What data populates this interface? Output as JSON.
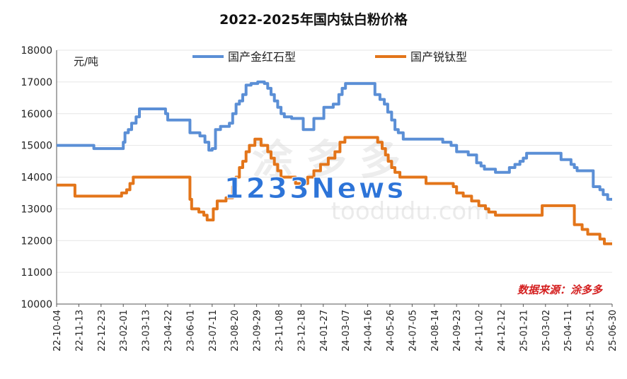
{
  "chart_data": {
    "type": "line",
    "title": "2022-2025年国内钛白粉价格",
    "unit_label": "元/吨",
    "source_label": "数据来源：涂多多",
    "watermark": {
      "line1": "涂多多",
      "line2": "toodudu.com",
      "overlay": "1233News"
    },
    "ylim": [
      10000,
      18000
    ],
    "yticks": [
      "10000",
      "11000",
      "12000",
      "13000",
      "14000",
      "15000",
      "16000",
      "17000",
      "18000"
    ],
    "xlim": [
      "2022-10-04",
      "2025-06-30"
    ],
    "xticks": [
      {
        "date": "2022-10-04",
        "label": "22-10-04"
      },
      {
        "date": "2022-11-13",
        "label": "22-11-13"
      },
      {
        "date": "2022-12-23",
        "label": "22-12-23"
      },
      {
        "date": "2023-02-01",
        "label": "23-02-01"
      },
      {
        "date": "2023-03-13",
        "label": "23-03-13"
      },
      {
        "date": "2023-04-22",
        "label": "23-04-22"
      },
      {
        "date": "2023-06-01",
        "label": "23-06-01"
      },
      {
        "date": "2023-07-11",
        "label": "23-07-11"
      },
      {
        "date": "2023-08-20",
        "label": "23-08-20"
      },
      {
        "date": "2023-09-29",
        "label": "23-09-29"
      },
      {
        "date": "2023-11-08",
        "label": "23-11-08"
      },
      {
        "date": "2023-12-18",
        "label": "23-12-18"
      },
      {
        "date": "2024-01-27",
        "label": "24-01-27"
      },
      {
        "date": "2024-03-07",
        "label": "24-03-07"
      },
      {
        "date": "2024-04-16",
        "label": "24-04-16"
      },
      {
        "date": "2024-05-26",
        "label": "24-05-26"
      },
      {
        "date": "2024-07-05",
        "label": "24-07-05"
      },
      {
        "date": "2024-08-14",
        "label": "24-08-14"
      },
      {
        "date": "2024-09-23",
        "label": "24-09-23"
      },
      {
        "date": "2024-11-02",
        "label": "24-11-02"
      },
      {
        "date": "2024-12-12",
        "label": "24-12-12"
      },
      {
        "date": "2025-01-21",
        "label": "25-01-21"
      },
      {
        "date": "2025-03-02",
        "label": "25-03-02"
      },
      {
        "date": "2025-04-11",
        "label": "25-04-11"
      },
      {
        "date": "2025-05-21",
        "label": "25-05-21"
      },
      {
        "date": "2025-06-30",
        "label": "25-06-30"
      }
    ],
    "legend_position": "top",
    "series": [
      {
        "name": "国产金红石型",
        "color": "#5b8fd6",
        "step": true,
        "points": [
          [
            "2022-10-04",
            15000
          ],
          [
            "2022-12-07",
            15000
          ],
          [
            "2022-12-10",
            14900
          ],
          [
            "2023-01-28",
            14900
          ],
          [
            "2023-02-01",
            15100
          ],
          [
            "2023-02-04",
            15400
          ],
          [
            "2023-02-10",
            15500
          ],
          [
            "2023-02-16",
            15700
          ],
          [
            "2023-02-24",
            15900
          ],
          [
            "2023-03-02",
            16150
          ],
          [
            "2023-04-13",
            16150
          ],
          [
            "2023-04-18",
            16000
          ],
          [
            "2023-04-22",
            15800
          ],
          [
            "2023-05-29",
            15800
          ],
          [
            "2023-06-01",
            15400
          ],
          [
            "2023-06-19",
            15300
          ],
          [
            "2023-06-28",
            15100
          ],
          [
            "2023-07-05",
            14850
          ],
          [
            "2023-07-11",
            14900
          ],
          [
            "2023-07-17",
            15500
          ],
          [
            "2023-07-26",
            15600
          ],
          [
            "2023-08-11",
            15700
          ],
          [
            "2023-08-17",
            16000
          ],
          [
            "2023-08-23",
            16300
          ],
          [
            "2023-08-29",
            16400
          ],
          [
            "2023-09-04",
            16600
          ],
          [
            "2023-09-10",
            16900
          ],
          [
            "2023-09-19",
            16950
          ],
          [
            "2023-10-01",
            17000
          ],
          [
            "2023-10-13",
            16950
          ],
          [
            "2023-10-19",
            16800
          ],
          [
            "2023-10-25",
            16600
          ],
          [
            "2023-10-31",
            16400
          ],
          [
            "2023-11-06",
            16200
          ],
          [
            "2023-11-12",
            16000
          ],
          [
            "2023-11-18",
            15900
          ],
          [
            "2023-12-01",
            15850
          ],
          [
            "2023-12-18",
            15850
          ],
          [
            "2023-12-22",
            15500
          ],
          [
            "2024-01-06",
            15500
          ],
          [
            "2024-01-10",
            15850
          ],
          [
            "2024-01-24",
            15850
          ],
          [
            "2024-01-28",
            16200
          ],
          [
            "2024-02-14",
            16300
          ],
          [
            "2024-02-24",
            16600
          ],
          [
            "2024-03-01",
            16800
          ],
          [
            "2024-03-07",
            16950
          ],
          [
            "2024-04-25",
            16950
          ],
          [
            "2024-04-29",
            16600
          ],
          [
            "2024-05-08",
            16450
          ],
          [
            "2024-05-16",
            16300
          ],
          [
            "2024-05-22",
            16050
          ],
          [
            "2024-05-29",
            15800
          ],
          [
            "2024-06-04",
            15500
          ],
          [
            "2024-06-10",
            15400
          ],
          [
            "2024-06-19",
            15200
          ],
          [
            "2024-08-29",
            15100
          ],
          [
            "2024-09-13",
            15000
          ],
          [
            "2024-09-23",
            14800
          ],
          [
            "2024-10-14",
            14700
          ],
          [
            "2024-10-29",
            14450
          ],
          [
            "2024-11-06",
            14350
          ],
          [
            "2024-11-12",
            14250
          ],
          [
            "2024-12-02",
            14150
          ],
          [
            "2024-12-27",
            14300
          ],
          [
            "2025-01-06",
            14400
          ],
          [
            "2025-01-15",
            14500
          ],
          [
            "2025-01-21",
            14600
          ],
          [
            "2025-01-27",
            14750
          ],
          [
            "2025-03-24",
            14750
          ],
          [
            "2025-03-30",
            14550
          ],
          [
            "2025-04-17",
            14400
          ],
          [
            "2025-04-23",
            14300
          ],
          [
            "2025-04-28",
            14200
          ],
          [
            "2025-05-27",
            13700
          ],
          [
            "2025-06-08",
            13600
          ],
          [
            "2025-06-14",
            13450
          ],
          [
            "2025-06-22",
            13300
          ],
          [
            "2025-06-30",
            13300
          ]
        ]
      },
      {
        "name": "国产锐钛型",
        "color": "#e3751a",
        "step": true,
        "points": [
          [
            "2022-10-04",
            13750
          ],
          [
            "2022-11-03",
            13750
          ],
          [
            "2022-11-06",
            13400
          ],
          [
            "2023-01-25",
            13400
          ],
          [
            "2023-01-29",
            13500
          ],
          [
            "2023-02-07",
            13600
          ],
          [
            "2023-02-13",
            13800
          ],
          [
            "2023-02-19",
            14000
          ],
          [
            "2023-05-29",
            14000
          ],
          [
            "2023-06-01",
            13300
          ],
          [
            "2023-06-04",
            13000
          ],
          [
            "2023-06-17",
            12900
          ],
          [
            "2023-06-26",
            12800
          ],
          [
            "2023-07-02",
            12650
          ],
          [
            "2023-07-08",
            12650
          ],
          [
            "2023-07-13",
            13000
          ],
          [
            "2023-07-20",
            13250
          ],
          [
            "2023-08-05",
            13350
          ],
          [
            "2023-08-17",
            13700
          ],
          [
            "2023-08-23",
            14000
          ],
          [
            "2023-08-29",
            14300
          ],
          [
            "2023-09-04",
            14500
          ],
          [
            "2023-09-10",
            14800
          ],
          [
            "2023-09-16",
            15000
          ],
          [
            "2023-09-26",
            15200
          ],
          [
            "2023-10-07",
            15000
          ],
          [
            "2023-10-19",
            14800
          ],
          [
            "2023-10-25",
            14600
          ],
          [
            "2023-10-31",
            14400
          ],
          [
            "2023-11-06",
            14200
          ],
          [
            "2023-11-12",
            14000
          ],
          [
            "2023-12-08",
            13800
          ],
          [
            "2023-12-24",
            13800
          ],
          [
            "2023-12-30",
            14000
          ],
          [
            "2024-01-10",
            14200
          ],
          [
            "2024-01-22",
            14400
          ],
          [
            "2024-02-05",
            14600
          ],
          [
            "2024-02-17",
            14800
          ],
          [
            "2024-02-26",
            15100
          ],
          [
            "2024-03-06",
            15250
          ],
          [
            "2024-04-30",
            15250
          ],
          [
            "2024-05-04",
            15100
          ],
          [
            "2024-05-12",
            14900
          ],
          [
            "2024-05-18",
            14700
          ],
          [
            "2024-05-23",
            14500
          ],
          [
            "2024-05-29",
            14300
          ],
          [
            "2024-06-04",
            14150
          ],
          [
            "2024-06-13",
            14000
          ],
          [
            "2024-07-30",
            13800
          ],
          [
            "2024-09-17",
            13700
          ],
          [
            "2024-09-23",
            13500
          ],
          [
            "2024-10-05",
            13400
          ],
          [
            "2024-10-20",
            13250
          ],
          [
            "2024-11-02",
            13100
          ],
          [
            "2024-11-14",
            13000
          ],
          [
            "2024-11-20",
            12900
          ],
          [
            "2024-12-02",
            12800
          ],
          [
            "2025-02-24",
            13100
          ],
          [
            "2025-04-17",
            13100
          ],
          [
            "2025-04-23",
            12500
          ],
          [
            "2025-05-07",
            12350
          ],
          [
            "2025-05-17",
            12200
          ],
          [
            "2025-06-08",
            12050
          ],
          [
            "2025-06-16",
            11900
          ],
          [
            "2025-06-30",
            11900
          ]
        ]
      }
    ]
  }
}
